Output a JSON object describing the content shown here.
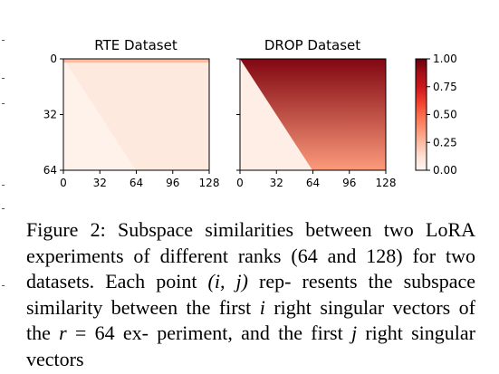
{
  "figure": {
    "colorbar": {
      "ticks": [
        "1.00",
        "0.75",
        "0.50",
        "0.25",
        "0.00"
      ]
    },
    "panels": [
      {
        "title": "RTE Dataset",
        "x_ticks": [
          "0",
          "32",
          "64",
          "96",
          "128"
        ],
        "y_ticks": [
          "0",
          "32",
          "64"
        ],
        "top_row_value": 0.25,
        "upper_region_value": 0.07,
        "lower_region_value": 0.02
      },
      {
        "title": "DROP Dataset",
        "x_ticks": [
          "0",
          "32",
          "64",
          "96",
          "128"
        ],
        "y_ticks": [],
        "top_value": 0.95,
        "bottom_value": 0.35,
        "lower_region_value": 0.04
      }
    ],
    "colors": {
      "low": "#fff5f0",
      "high": "#67000d"
    }
  },
  "chart_data": [
    {
      "type": "heatmap",
      "title": "RTE Dataset",
      "xlabel": "",
      "ylabel": "",
      "xlim": [
        0,
        128
      ],
      "ylim": [
        64,
        0
      ],
      "x_ticks": [
        0,
        32,
        64,
        96,
        128
      ],
      "y_ticks": [
        0,
        32,
        64
      ],
      "value_range": [
        0,
        1
      ],
      "approx_values": {
        "row_0": 0.25,
        "region_above_diagonal": 0.07,
        "region_below_diagonal": 0.02
      }
    },
    {
      "type": "heatmap",
      "title": "DROP Dataset",
      "xlabel": "",
      "ylabel": "",
      "xlim": [
        0,
        128
      ],
      "ylim": [
        64,
        0
      ],
      "x_ticks": [
        0,
        32,
        64,
        96,
        128
      ],
      "value_range": [
        0,
        1
      ],
      "approx_values": {
        "row_0_above_diagonal": 0.95,
        "row_64_above_diagonal": 0.35,
        "region_below_diagonal": 0.04
      }
    }
  ],
  "caption": {
    "lines": [
      [
        "Figure 2: Subspace similarities between two"
      ],
      [
        "LoRA experiments of different ranks (64 and"
      ],
      [
        "128) for two datasets. Each point ",
        {
          "m": "(i, j)"
        },
        " rep-"
      ],
      [
        "resents the subspace similarity between the"
      ],
      [
        "first ",
        {
          "m": "i"
        },
        " right singular vectors of the ",
        {
          "m": "r"
        },
        " = 64 ex-"
      ],
      [
        "periment, and the first ",
        {
          "m": "j"
        },
        " right singular vectors"
      ]
    ]
  }
}
